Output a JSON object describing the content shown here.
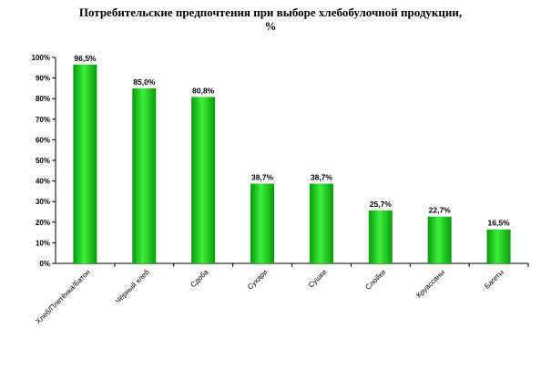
{
  "chart_data": {
    "type": "bar",
    "title_lines": [
      "Потребительские предпочтения при выборе хлебобулочной продукции,",
      "%"
    ],
    "xlabel": "",
    "ylabel": "",
    "categories": [
      "Хлеб/Плетёнка/Батон",
      "Чёрный хлеб",
      "Сдоба",
      "Сухари",
      "Сушки",
      "Слойки",
      "Круассаны",
      "Багеты"
    ],
    "values": [
      96.5,
      85.0,
      80.8,
      38.7,
      38.7,
      25.7,
      22.7,
      16.5
    ],
    "value_labels": [
      "96,5%",
      "85,0%",
      "80,8%",
      "38,7%",
      "38,7%",
      "25,7%",
      "22,7%",
      "16,5%"
    ],
    "ylim": [
      0,
      100
    ],
    "yticks": [
      0,
      10,
      20,
      30,
      40,
      50,
      60,
      70,
      80,
      90,
      100
    ],
    "ytick_labels": [
      "0%",
      "10%",
      "20%",
      "30%",
      "40%",
      "50%",
      "60%",
      "70%",
      "80%",
      "90%",
      "100%"
    ],
    "grid": false,
    "legend": "none",
    "colors": {
      "bar_dark": "#0a9a0a",
      "bar_light": "#3cf03c",
      "axis": "#000000"
    }
  }
}
